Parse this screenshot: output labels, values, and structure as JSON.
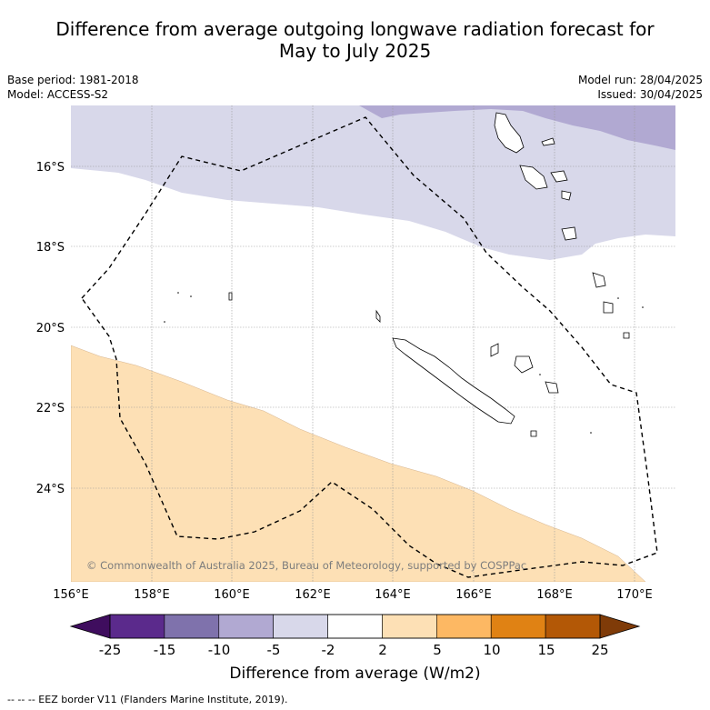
{
  "title": {
    "line1": "Difference from average outgoing longwave radiation forecast for",
    "line2": "May to July 2025"
  },
  "meta": {
    "base_period": "Base period: 1981-2018",
    "model": "Model: ACCESS-S2",
    "model_run": "Model run: 28/04/2025",
    "issued": "Issued: 30/04/2025"
  },
  "map": {
    "lat_labels": [
      "16°S",
      "18°S",
      "20°S",
      "22°S",
      "24°S"
    ],
    "lon_labels": [
      "156°E",
      "158°E",
      "160°E",
      "162°E",
      "164°E",
      "166°E",
      "168°E",
      "170°E"
    ],
    "copyright": "© Commonwealth of Australia 2025, Bureau of Meteorology, supported by COSPPac"
  },
  "colorbar": {
    "ticks": [
      "-25",
      "-15",
      "-10",
      "-5",
      "-2",
      "2",
      "5",
      "10",
      "15",
      "25"
    ],
    "colors": [
      "#3f0d5e",
      "#5b2a8c",
      "#7f72ac",
      "#b1a9d2",
      "#d8d8ea",
      "#ffffff",
      "#fde0b5",
      "#fdb863",
      "#e08214",
      "#b35806",
      "#7f3b08"
    ],
    "label": "Difference from average (W/m2)"
  },
  "footnote": "-- -- -- EEZ border V11 (Flanders Marine Institute, 2019)."
}
